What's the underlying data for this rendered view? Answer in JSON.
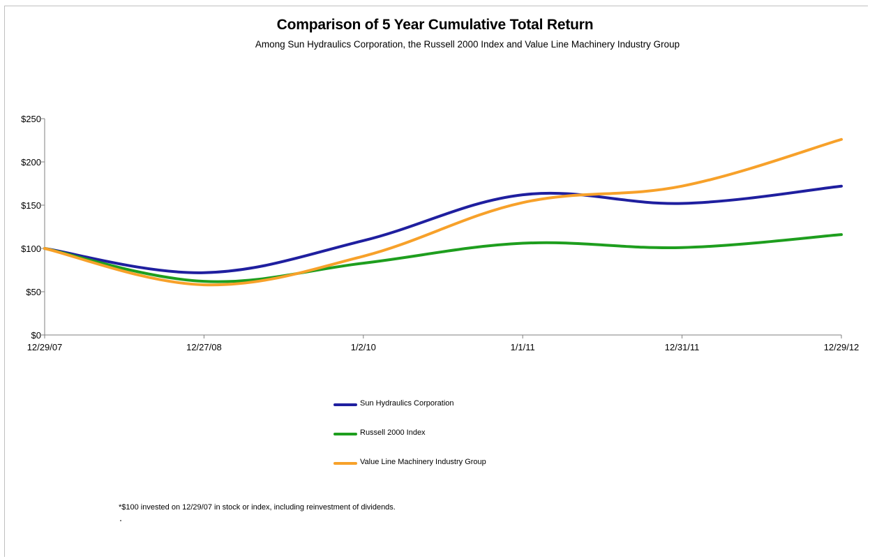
{
  "chart_data": {
    "type": "line",
    "title": "Comparison of 5 Year Cumulative Total Return",
    "subtitle": "Among Sun Hydraulics Corporation, the Russell 2000 Index and Value Line Machinery Industry Group",
    "xlabel": "",
    "ylabel": "",
    "categories": [
      "12/29/07",
      "12/27/08",
      "1/2/10",
      "1/1/11",
      "12/31/11",
      "12/29/12"
    ],
    "ylim": [
      0,
      250
    ],
    "yticks": [
      0,
      50,
      100,
      150,
      200,
      250
    ],
    "ytick_labels": [
      "$0",
      "$50",
      "$100",
      "$150",
      "$200",
      "$250"
    ],
    "grid": false,
    "legend_position": "bottom",
    "series": [
      {
        "name": "Sun Hydraulics Corporation",
        "color": "#1f1f9f",
        "values": [
          100,
          72,
          109,
          162,
          152,
          172
        ]
      },
      {
        "name": "Russell 2000 Index",
        "color": "#1e9e1e",
        "values": [
          100,
          62,
          83,
          106,
          101,
          116
        ]
      },
      {
        "name": "Value Line Machinery Industry Group",
        "color": "#f7a12a",
        "values": [
          100,
          58,
          91,
          153,
          172,
          226
        ]
      }
    ],
    "footnote": "*$100 invested on 12/29/07 in stock or index, including reinvestment of dividends."
  }
}
